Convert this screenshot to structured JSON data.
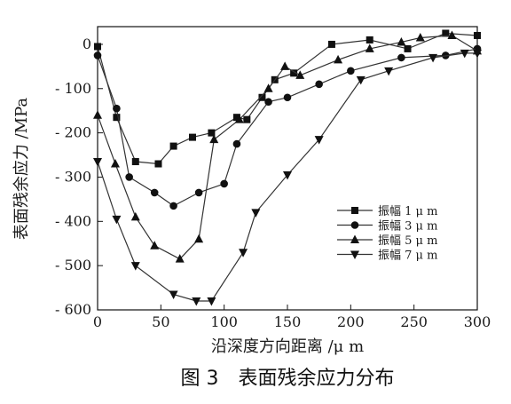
{
  "chart_data": {
    "type": "line",
    "title": "",
    "xlabel": "沿深度方向距离 /μ m",
    "ylabel": "表面残余应力 /MPa",
    "xlim": [
      0,
      300
    ],
    "ylim": [
      -600,
      40
    ],
    "x_ticks": [
      0,
      50,
      100,
      150,
      200,
      250,
      300
    ],
    "x_tick_labels": [
      "0",
      "50",
      "100",
      "150",
      "200",
      "250",
      "300"
    ],
    "y_ticks": [
      0,
      -100,
      -200,
      -300,
      -400,
      -500,
      -600
    ],
    "y_tick_labels": [
      "0",
      "- 100",
      "- 200",
      "- 300",
      "- 400",
      "- 500",
      "- 600"
    ],
    "grid": false,
    "legend_position": "center-right",
    "series": [
      {
        "name": "振幅 1 μ m",
        "marker": "square",
        "x": [
          0,
          15,
          30,
          48,
          60,
          75,
          90,
          110,
          118,
          130,
          140,
          155,
          185,
          215,
          245,
          275,
          300
        ],
        "y": [
          -5,
          -165,
          -265,
          -270,
          -230,
          -210,
          -200,
          -165,
          -170,
          -120,
          -80,
          -65,
          0,
          10,
          -10,
          25,
          20
        ]
      },
      {
        "name": "振幅 3 μ m",
        "marker": "circle",
        "x": [
          0,
          15,
          25,
          45,
          60,
          80,
          100,
          110,
          135,
          150,
          175,
          200,
          240,
          275,
          300
        ],
        "y": [
          -25,
          -145,
          -300,
          -335,
          -365,
          -335,
          -315,
          -225,
          -130,
          -120,
          -90,
          -60,
          -30,
          -25,
          -10
        ]
      },
      {
        "name": "振幅 5 μ m",
        "marker": "triangle-up",
        "x": [
          0,
          14,
          30,
          45,
          65,
          80,
          92,
          112,
          135,
          148,
          160,
          190,
          215,
          240,
          255,
          280,
          300
        ],
        "y": [
          -160,
          -270,
          -390,
          -455,
          -485,
          -440,
          -215,
          -170,
          -100,
          -50,
          -70,
          -35,
          -10,
          5,
          15,
          20,
          -15
        ]
      },
      {
        "name": "振幅 7 μ m",
        "marker": "triangle-down",
        "x": [
          0,
          15,
          30,
          60,
          78,
          90,
          115,
          125,
          150,
          175,
          208,
          230,
          265,
          290,
          300
        ],
        "y": [
          -265,
          -395,
          -500,
          -565,
          -580,
          -580,
          -470,
          -380,
          -295,
          -215,
          -80,
          -60,
          -30,
          -20,
          -20
        ]
      }
    ]
  },
  "figure": {
    "caption": "图 3　表面残余应力分布"
  },
  "colors": {
    "line": "#333333",
    "marker": "#111111",
    "frame": "#111111",
    "text": "#1a1a1a"
  }
}
